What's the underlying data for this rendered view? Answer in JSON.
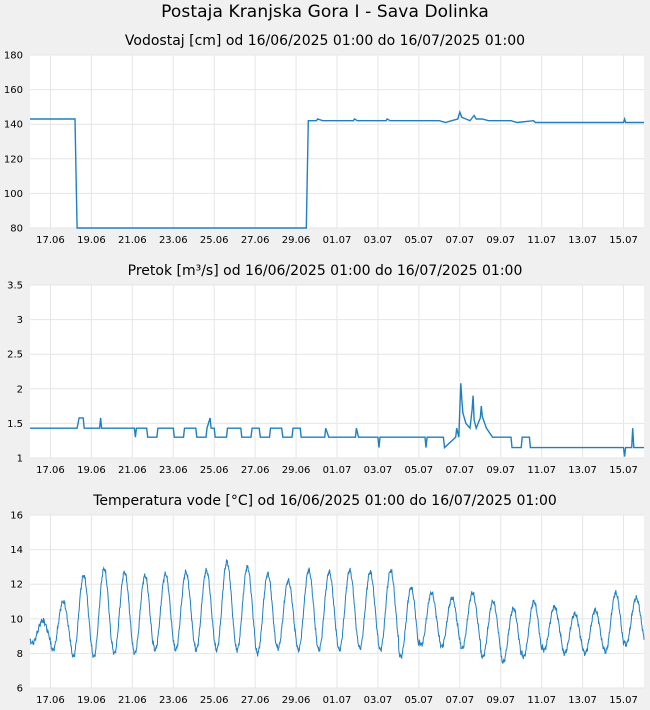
{
  "page": {
    "title": "Postaja Kranjska Gora I - Sava Dolinka"
  },
  "chart_data": [
    {
      "type": "line",
      "title": "Vodostaj [cm] od 16/06/2025 01:00 do 16/07/2025 01:00",
      "ylim": [
        80,
        180
      ],
      "yticks": [
        80,
        100,
        120,
        140,
        160,
        180
      ],
      "xlim": [
        0,
        30
      ],
      "xticks": [
        {
          "d": 1,
          "label": "17.06"
        },
        {
          "d": 3,
          "label": "19.06"
        },
        {
          "d": 5,
          "label": "21.06"
        },
        {
          "d": 7,
          "label": "23.06"
        },
        {
          "d": 9,
          "label": "25.06"
        },
        {
          "d": 11,
          "label": "27.06"
        },
        {
          "d": 13,
          "label": "29.06"
        },
        {
          "d": 15,
          "label": "01.07"
        },
        {
          "d": 17,
          "label": "03.07"
        },
        {
          "d": 19,
          "label": "05.07"
        },
        {
          "d": 21,
          "label": "07.07"
        },
        {
          "d": 23,
          "label": "09.07"
        },
        {
          "d": 25,
          "label": "11.07"
        },
        {
          "d": 27,
          "label": "13.07"
        },
        {
          "d": 29,
          "label": "15.07"
        }
      ],
      "grid": true,
      "color": "#1f7fc0",
      "series": [
        {
          "values": [
            [
              0,
              143
            ],
            [
              2.2,
              143
            ],
            [
              2.25,
              112
            ],
            [
              2.3,
              80
            ],
            [
              13.5,
              80
            ],
            [
              13.55,
              111
            ],
            [
              13.6,
              142
            ],
            [
              14.0,
              142
            ],
            [
              14.05,
              143
            ],
            [
              14.3,
              142
            ],
            [
              15.8,
              142
            ],
            [
              15.85,
              143
            ],
            [
              16.0,
              142
            ],
            [
              17.4,
              142
            ],
            [
              17.45,
              143
            ],
            [
              17.6,
              142
            ],
            [
              20.0,
              142
            ],
            [
              20.3,
              141
            ],
            [
              20.6,
              142
            ],
            [
              20.9,
              143
            ],
            [
              21.0,
              147
            ],
            [
              21.1,
              144
            ],
            [
              21.3,
              143
            ],
            [
              21.5,
              142
            ],
            [
              21.7,
              145
            ],
            [
              21.8,
              143
            ],
            [
              22.1,
              143
            ],
            [
              22.4,
              142
            ],
            [
              23.5,
              142
            ],
            [
              23.8,
              141
            ],
            [
              24.6,
              142
            ],
            [
              24.7,
              141
            ],
            [
              29.0,
              141
            ],
            [
              29.05,
              143
            ],
            [
              29.1,
              141
            ],
            [
              30,
              141
            ]
          ]
        }
      ]
    },
    {
      "type": "line",
      "title": "Pretok [m³/s] od 16/06/2025 01:00 do 16/07/2025 01:00",
      "ylim": [
        1,
        3.5
      ],
      "yticks": [
        1,
        1.5,
        2,
        2.5,
        3,
        3.5
      ],
      "yticklabels": [
        "1",
        "1.5",
        "2",
        "2.5",
        "3",
        "3.5"
      ],
      "xlim": [
        0,
        30
      ],
      "grid": true,
      "color": "#1f7fc0",
      "series": [
        {
          "values": [
            [
              0,
              1.43
            ],
            [
              2.3,
              1.43
            ],
            [
              2.4,
              1.58
            ],
            [
              2.6,
              1.58
            ],
            [
              2.65,
              1.43
            ],
            [
              3.4,
              1.43
            ],
            [
              3.45,
              1.58
            ],
            [
              3.5,
              1.43
            ],
            [
              5.1,
              1.43
            ],
            [
              5.15,
              1.3
            ],
            [
              5.2,
              1.43
            ],
            [
              5.7,
              1.43
            ],
            [
              5.75,
              1.3
            ],
            [
              6.2,
              1.3
            ],
            [
              6.25,
              1.43
            ],
            [
              7.0,
              1.43
            ],
            [
              7.05,
              1.3
            ],
            [
              7.5,
              1.3
            ],
            [
              7.55,
              1.43
            ],
            [
              8.1,
              1.43
            ],
            [
              8.15,
              1.3
            ],
            [
              8.6,
              1.3
            ],
            [
              8.65,
              1.43
            ],
            [
              8.8,
              1.58
            ],
            [
              8.85,
              1.43
            ],
            [
              9.0,
              1.43
            ],
            [
              9.05,
              1.3
            ],
            [
              9.6,
              1.3
            ],
            [
              9.65,
              1.43
            ],
            [
              10.3,
              1.43
            ],
            [
              10.35,
              1.3
            ],
            [
              10.8,
              1.3
            ],
            [
              10.85,
              1.43
            ],
            [
              11.2,
              1.43
            ],
            [
              11.25,
              1.3
            ],
            [
              11.7,
              1.3
            ],
            [
              11.75,
              1.43
            ],
            [
              12.3,
              1.43
            ],
            [
              12.35,
              1.3
            ],
            [
              12.8,
              1.3
            ],
            [
              12.85,
              1.43
            ],
            [
              13.2,
              1.43
            ],
            [
              13.25,
              1.3
            ],
            [
              14.4,
              1.3
            ],
            [
              14.45,
              1.43
            ],
            [
              14.6,
              1.3
            ],
            [
              15.9,
              1.3
            ],
            [
              15.95,
              1.43
            ],
            [
              16.05,
              1.3
            ],
            [
              17.0,
              1.3
            ],
            [
              17.05,
              1.15
            ],
            [
              17.1,
              1.3
            ],
            [
              19.3,
              1.3
            ],
            [
              19.35,
              1.15
            ],
            [
              19.4,
              1.3
            ],
            [
              20.2,
              1.3
            ],
            [
              20.25,
              1.15
            ],
            [
              20.8,
              1.3
            ],
            [
              20.85,
              1.43
            ],
            [
              20.95,
              1.3
            ],
            [
              21.0,
              1.7
            ],
            [
              21.05,
              2.08
            ],
            [
              21.1,
              1.85
            ],
            [
              21.15,
              1.65
            ],
            [
              21.3,
              1.5
            ],
            [
              21.5,
              1.43
            ],
            [
              21.6,
              1.7
            ],
            [
              21.65,
              1.9
            ],
            [
              21.7,
              1.55
            ],
            [
              21.8,
              1.43
            ],
            [
              22.0,
              1.58
            ],
            [
              22.05,
              1.75
            ],
            [
              22.1,
              1.6
            ],
            [
              22.3,
              1.43
            ],
            [
              22.6,
              1.3
            ],
            [
              23.5,
              1.3
            ],
            [
              23.55,
              1.15
            ],
            [
              24.0,
              1.15
            ],
            [
              24.05,
              1.3
            ],
            [
              24.4,
              1.3
            ],
            [
              24.45,
              1.15
            ],
            [
              29.0,
              1.15
            ],
            [
              29.05,
              1.02
            ],
            [
              29.1,
              1.15
            ],
            [
              29.4,
              1.15
            ],
            [
              29.45,
              1.43
            ],
            [
              29.5,
              1.15
            ],
            [
              30,
              1.15
            ]
          ]
        }
      ]
    },
    {
      "type": "line",
      "title": "Temperatura vode [°C] od 16/06/2025 01:00 do 16/07/2025 01:00",
      "ylim": [
        6,
        16
      ],
      "yticks": [
        6,
        8,
        10,
        12,
        14,
        16
      ],
      "xlim": [
        0,
        30
      ],
      "grid": true,
      "color": "#1f7fc0",
      "series": [
        {
          "daily_min": [
            8.6,
            8.2,
            7.8,
            7.8,
            8.0,
            8.0,
            8.2,
            8.2,
            8.2,
            8.2,
            8.2,
            8.0,
            8.3,
            8.2,
            8.2,
            8.2,
            8.3,
            8.2,
            7.8,
            8.5,
            8.4,
            8.3,
            7.8,
            7.5,
            7.8,
            8.2,
            8.0,
            8.0,
            8.1,
            8.5,
            9.5
          ],
          "daily_max": [
            9.9,
            11.0,
            12.5,
            12.9,
            12.7,
            12.5,
            12.6,
            12.7,
            12.8,
            13.3,
            13.0,
            12.6,
            12.2,
            12.8,
            12.7,
            12.8,
            12.7,
            12.8,
            11.8,
            11.5,
            11.2,
            11.5,
            11.0,
            10.6,
            11.0,
            10.7,
            10.3,
            10.5,
            11.5,
            11.2,
            12.2
          ]
        }
      ]
    }
  ]
}
